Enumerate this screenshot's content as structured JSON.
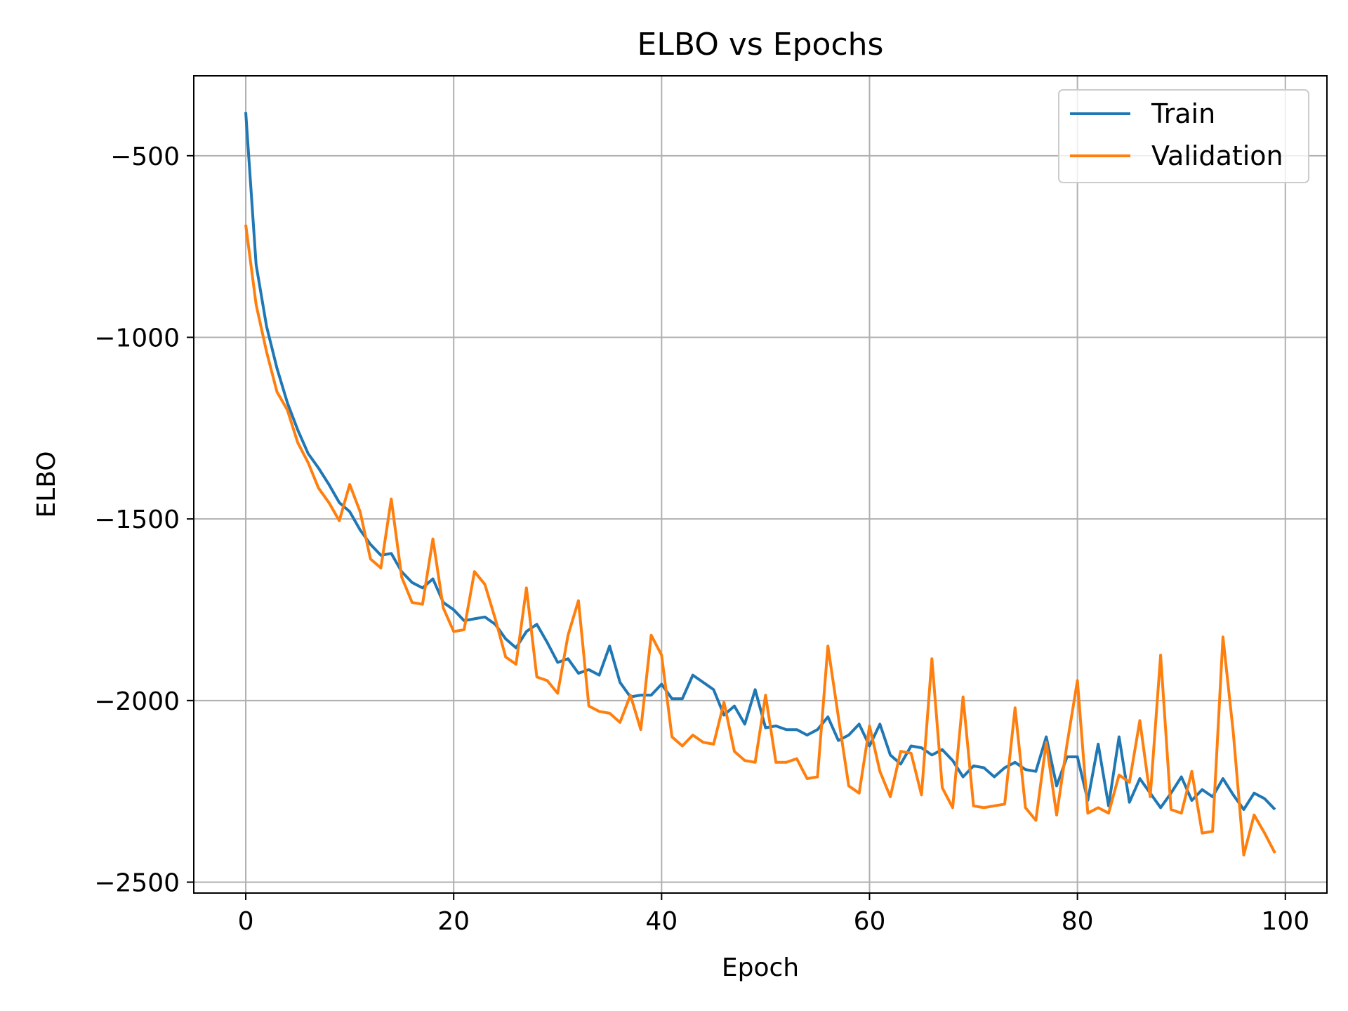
{
  "chart_data": {
    "type": "line",
    "title": "ELBO vs Epochs",
    "xlabel": "Epoch",
    "ylabel": "ELBO",
    "xlim": [
      -5,
      104
    ],
    "ylim": [
      -2530,
      -280
    ],
    "xticks": [
      0,
      20,
      40,
      60,
      80,
      100
    ],
    "yticks": [
      -500,
      -1000,
      -1500,
      -2000,
      -2500
    ],
    "xtick_labels": [
      "0",
      "20",
      "40",
      "60",
      "80",
      "100"
    ],
    "ytick_labels": [
      "−500",
      "−1000",
      "−1500",
      "−2000",
      "−2500"
    ],
    "grid": true,
    "legend_position": "top-right",
    "x": [
      0,
      1,
      2,
      3,
      4,
      5,
      6,
      7,
      8,
      9,
      10,
      11,
      12,
      13,
      14,
      15,
      16,
      17,
      18,
      19,
      20,
      21,
      22,
      23,
      24,
      25,
      26,
      27,
      28,
      29,
      30,
      31,
      32,
      33,
      34,
      35,
      36,
      37,
      38,
      39,
      40,
      41,
      42,
      43,
      44,
      45,
      46,
      47,
      48,
      49,
      50,
      51,
      52,
      53,
      54,
      55,
      56,
      57,
      58,
      59,
      60,
      61,
      62,
      63,
      64,
      65,
      66,
      67,
      68,
      69,
      70,
      71,
      72,
      73,
      74,
      75,
      76,
      77,
      78,
      79,
      80,
      81,
      82,
      83,
      84,
      85,
      86,
      87,
      88,
      89,
      90,
      91,
      92,
      93,
      94,
      95,
      96,
      97,
      98,
      99
    ],
    "series": [
      {
        "name": "Train",
        "color": "#1f77b4",
        "values": [
          -380,
          -800,
          -970,
          -1085,
          -1180,
          -1255,
          -1320,
          -1360,
          -1405,
          -1455,
          -1480,
          -1530,
          -1570,
          -1600,
          -1595,
          -1645,
          -1675,
          -1690,
          -1665,
          -1730,
          -1750,
          -1780,
          -1775,
          -1770,
          -1790,
          -1830,
          -1855,
          -1810,
          -1790,
          -1840,
          -1895,
          -1885,
          -1925,
          -1915,
          -1930,
          -1850,
          -1950,
          -1990,
          -1985,
          -1985,
          -1955,
          -1995,
          -1995,
          -1930,
          -1950,
          -1970,
          -2040,
          -2015,
          -2065,
          -1970,
          -2075,
          -2070,
          -2080,
          -2080,
          -2095,
          -2080,
          -2045,
          -2110,
          -2095,
          -2065,
          -2125,
          -2065,
          -2150,
          -2175,
          -2125,
          -2130,
          -2150,
          -2135,
          -2165,
          -2210,
          -2180,
          -2185,
          -2210,
          -2185,
          -2170,
          -2190,
          -2195,
          -2100,
          -2235,
          -2155,
          -2155,
          -2275,
          -2120,
          -2290,
          -2100,
          -2280,
          -2215,
          -2255,
          -2295,
          -2255,
          -2210,
          -2275,
          -2245,
          -2265,
          -2215,
          -2260,
          -2300,
          -2255,
          -2270,
          -2300
        ]
      },
      {
        "name": "Validation",
        "color": "#ff7f0e",
        "values": [
          -690,
          -910,
          -1040,
          -1150,
          -1200,
          -1290,
          -1345,
          -1415,
          -1455,
          -1505,
          -1405,
          -1480,
          -1610,
          -1635,
          -1445,
          -1660,
          -1730,
          -1735,
          -1555,
          -1745,
          -1810,
          -1805,
          -1645,
          -1680,
          -1775,
          -1880,
          -1900,
          -1690,
          -1935,
          -1945,
          -1980,
          -1820,
          -1725,
          -2015,
          -2030,
          -2035,
          -2060,
          -1985,
          -2080,
          -1820,
          -1875,
          -2100,
          -2125,
          -2095,
          -2115,
          -2120,
          -2005,
          -2140,
          -2165,
          -2170,
          -1985,
          -2170,
          -2170,
          -2160,
          -2215,
          -2210,
          -1850,
          -2045,
          -2235,
          -2255,
          -2070,
          -2195,
          -2265,
          -2140,
          -2145,
          -2260,
          -1885,
          -2240,
          -2295,
          -1990,
          -2290,
          -2295,
          -2290,
          -2285,
          -2020,
          -2295,
          -2330,
          -2115,
          -2315,
          -2120,
          -1945,
          -2310,
          -2295,
          -2310,
          -2205,
          -2225,
          -2055,
          -2265,
          -1875,
          -2300,
          -2310,
          -2195,
          -2365,
          -2360,
          -1825,
          -2090,
          -2425,
          -2315,
          -2365,
          -2420
        ]
      }
    ]
  }
}
